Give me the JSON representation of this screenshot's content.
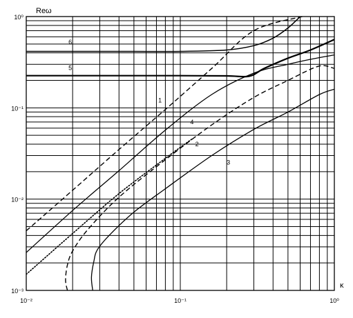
{
  "chart_data": {
    "type": "line",
    "title": "",
    "xlabel": "κ",
    "ylabel": "Reω",
    "x_scale": "log",
    "y_scale": "log",
    "xlim": [
      0.01,
      1
    ],
    "ylim": [
      0.001,
      1
    ],
    "grid": true,
    "x_ticks": [
      {
        "value": 0.01,
        "label": "10⁻²"
      },
      {
        "value": 0.1,
        "label": "10⁻¹"
      },
      {
        "value": 1,
        "label": "10⁰"
      }
    ],
    "y_ticks": [
      {
        "value": 0.001,
        "label": "10⁻³"
      },
      {
        "value": 0.01,
        "label": "10⁻²"
      },
      {
        "value": 0.1,
        "label": "10⁻¹"
      },
      {
        "value": 1,
        "label": "10⁰"
      }
    ],
    "series": [
      {
        "name": "1",
        "style": "dashed",
        "width": 1.4,
        "label_at": [
          0.072,
          0.115
        ],
        "x": [
          0.01,
          0.02,
          0.04,
          0.08,
          0.16,
          0.3,
          0.62
        ],
        "y": [
          0.0045,
          0.0125,
          0.035,
          0.096,
          0.27,
          0.7,
          1.0
        ]
      },
      {
        "name": "4",
        "style": "solid",
        "width": 1.3,
        "label_at": [
          0.116,
          0.066
        ],
        "x": [
          0.01,
          0.02,
          0.04,
          0.08,
          0.16,
          0.3,
          0.5,
          0.7,
          1.0
        ],
        "y": [
          0.0026,
          0.0075,
          0.0205,
          0.057,
          0.14,
          0.24,
          0.3,
          0.34,
          0.38
        ]
      },
      {
        "name": "2",
        "style": "dashed",
        "width": 1.4,
        "label_at": [
          0.125,
          0.038
        ],
        "x": [
          0.0185,
          0.018,
          0.0185,
          0.02,
          0.025,
          0.04,
          0.08,
          0.16,
          0.3,
          0.5,
          0.72,
          0.85,
          1.0
        ],
        "y": [
          0.001,
          0.0013,
          0.0019,
          0.0027,
          0.0046,
          0.0105,
          0.027,
          0.065,
          0.13,
          0.2,
          0.27,
          0.29,
          0.27
        ]
      },
      {
        "name": "",
        "style": "dotted",
        "width": 1.6,
        "x": [
          0.01,
          0.02,
          0.04,
          0.08,
          0.12
        ],
        "y": [
          0.0015,
          0.0042,
          0.0115,
          0.028,
          0.046
        ]
      },
      {
        "name": "3",
        "style": "solid",
        "width": 1.3,
        "label_at": [
          0.2,
          0.024
        ],
        "x": [
          0.027,
          0.0265,
          0.0275,
          0.029,
          0.035,
          0.05,
          0.08,
          0.16,
          0.3,
          0.5,
          0.8,
          1.0
        ],
        "y": [
          0.001,
          0.0014,
          0.0021,
          0.0028,
          0.0041,
          0.0072,
          0.013,
          0.03,
          0.058,
          0.09,
          0.14,
          0.16
        ]
      },
      {
        "name": "5",
        "style": "solid",
        "width": 2.2,
        "label_at": [
          0.0188,
          0.26
        ],
        "x": [
          0.01,
          0.05,
          0.1,
          0.2,
          0.28,
          0.35,
          0.5,
          0.7,
          1.0
        ],
        "y": [
          0.225,
          0.225,
          0.225,
          0.224,
          0.222,
          0.27,
          0.35,
          0.43,
          0.56
        ]
      },
      {
        "name": "6",
        "style": "solid",
        "width": 1.5,
        "label_at": [
          0.0188,
          0.5
        ],
        "x": [
          0.01,
          0.05,
          0.1,
          0.2,
          0.3,
          0.4,
          0.5,
          0.6
        ],
        "y": [
          0.415,
          0.415,
          0.415,
          0.43,
          0.48,
          0.58,
          0.75,
          1.0
        ]
      }
    ]
  }
}
